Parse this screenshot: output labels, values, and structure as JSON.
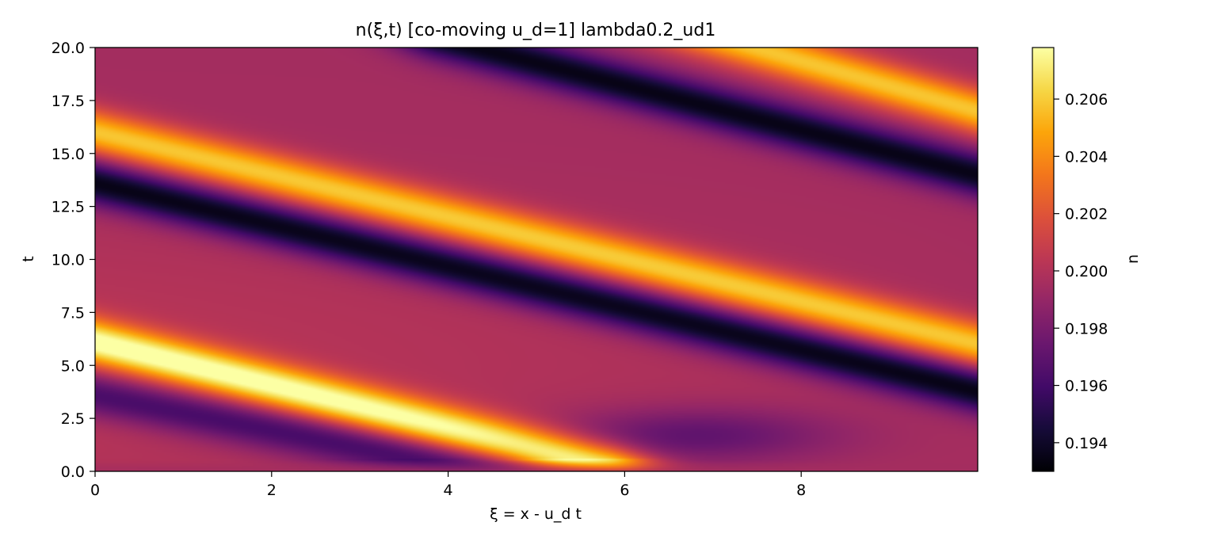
{
  "chart_data": {
    "type": "heatmap",
    "title": "n(ξ,t)  [co-moving u_d=1]  lambda0.2_ud1",
    "xlabel": "ξ = x - u_d t",
    "ylabel": "t",
    "xlim": [
      0,
      10
    ],
    "ylim": [
      0,
      20
    ],
    "x_ticks": [
      "0",
      "2",
      "4",
      "6",
      "8"
    ],
    "y_ticks": [
      "0.0",
      "2.5",
      "5.0",
      "7.5",
      "10.0",
      "12.5",
      "15.0",
      "17.5",
      "20.0"
    ],
    "colormap": "inferno",
    "colorbar": {
      "label": "n",
      "range": [
        0.193,
        0.2078
      ],
      "ticks": [
        "0.194",
        "0.196",
        "0.198",
        "0.200",
        "0.202",
        "0.204",
        "0.206"
      ]
    },
    "features": [
      {
        "kind": "max-band",
        "passes_through": [
          [
            0,
            16.0
          ],
          [
            10,
            6.0
          ]
        ],
        "peak_value": 0.2058
      },
      {
        "kind": "min-band",
        "passes_through": [
          [
            0,
            13.6
          ],
          [
            10,
            3.8
          ]
        ],
        "peak_value": 0.1933
      },
      {
        "kind": "max-band",
        "passes_through": [
          [
            4.5,
            23.5
          ],
          [
            10,
            17.0
          ]
        ],
        "peak_value": 0.2058
      },
      {
        "kind": "min-band",
        "passes_through": [
          [
            4.5,
            19.8
          ],
          [
            10,
            14.0
          ]
        ],
        "peak_value": 0.1935
      },
      {
        "kind": "max-band",
        "passes_through": [
          [
            0,
            6.1
          ],
          [
            5.2,
            0.8
          ]
        ],
        "peak_value": 0.2078
      },
      {
        "kind": "min-band",
        "passes_through": [
          [
            0,
            3.6
          ],
          [
            4.0,
            0.4
          ]
        ],
        "peak_value": 0.1955
      },
      {
        "kind": "min-spot",
        "center": [
          6.8,
          1.7
        ],
        "peak_value": 0.1968
      }
    ],
    "background_value": 0.1995
  }
}
